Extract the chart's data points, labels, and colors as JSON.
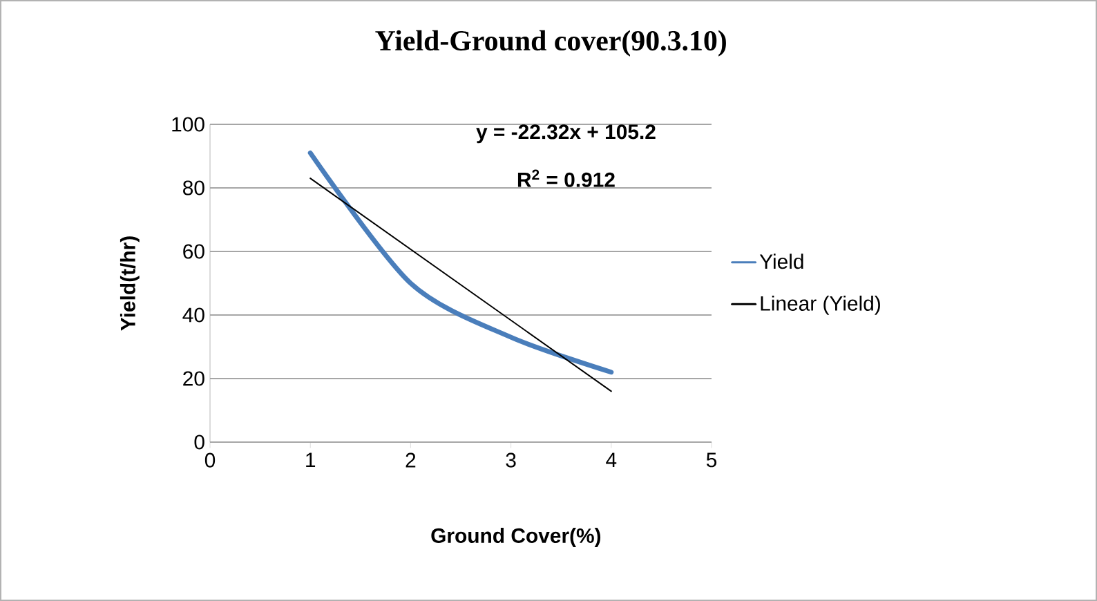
{
  "chart_data": {
    "type": "line",
    "title": "Yield-Ground cover(90.3.10)",
    "xlabel": "Ground Cover(%)",
    "ylabel": "Yield(t/hr)",
    "x": [
      1,
      2,
      3,
      4
    ],
    "series": [
      {
        "name": "Yield",
        "color": "#4a7ebb",
        "values": [
          91,
          50,
          33,
          22
        ]
      },
      {
        "name": "Linear (Yield)",
        "color": "#000000",
        "x": [
          1,
          4
        ],
        "values": [
          83,
          16
        ]
      }
    ],
    "xlim": [
      0,
      5
    ],
    "ylim": [
      0,
      100
    ],
    "xticks": [
      0,
      1,
      2,
      3,
      4,
      5
    ],
    "yticks": [
      0,
      20,
      40,
      60,
      80,
      100
    ],
    "grid": "y",
    "legend": "right",
    "marker": "none",
    "line_style": "solid",
    "annotations": [
      "y = -22.32x + 105.2",
      "R$^{2}$ = 0.912"
    ]
  }
}
